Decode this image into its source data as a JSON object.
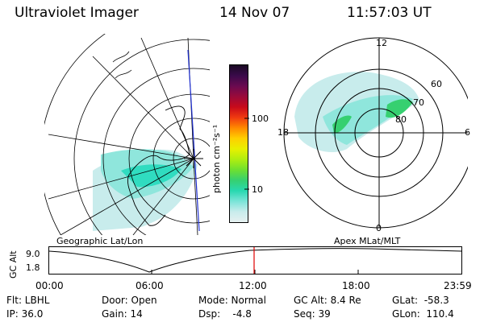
{
  "header": {
    "title": "Ultraviolet Imager",
    "date": "14 Nov 07",
    "time": "11:57:03 UT"
  },
  "colorbar": {
    "unit_label": "photon cm⁻²s⁻¹",
    "ticks": [
      "100",
      "10"
    ],
    "colors": [
      "#1a0a24",
      "#3a0a4a",
      "#6a0a50",
      "#9a0a3a",
      "#c80a1a",
      "#f03a10",
      "#ff8a00",
      "#ffd000",
      "#e8f000",
      "#b0ee10",
      "#6ee030",
      "#36d070",
      "#28d8b0",
      "#7ae4d8",
      "#c8ecec",
      "#e6f0f0"
    ]
  },
  "geo_panel": {
    "label": "Geographic Lat/Lon"
  },
  "polar_panel": {
    "label": "Apex MLat/MLT",
    "mlt_labels": {
      "top": "12",
      "right": "6",
      "bottom": "0",
      "left": "18"
    },
    "lat_labels": [
      "60",
      "70",
      "80"
    ]
  },
  "alt_plot": {
    "ylabel": "GC Alt",
    "yticks": [
      "9.0",
      "1.8"
    ],
    "xticks": [
      "00:00",
      "06:00",
      "12:00",
      "18:00",
      "23:59"
    ],
    "marker_time": "11:57"
  },
  "status": {
    "flt": "Flt: LBHL",
    "ip": "IP: 36.0",
    "door": "Door: Open",
    "gain": "Gain: 14",
    "mode": "Mode: Normal",
    "dsp": "Dsp:    -4.8",
    "gcalt": "GC Alt: 8.4 Re",
    "seq": "Seq: 39",
    "glat": "GLat:  -58.3",
    "glon": "GLon:  110.4"
  },
  "colors": {
    "marker": "#e00000",
    "trace": "#000000",
    "aurora": "#30dcc0"
  }
}
